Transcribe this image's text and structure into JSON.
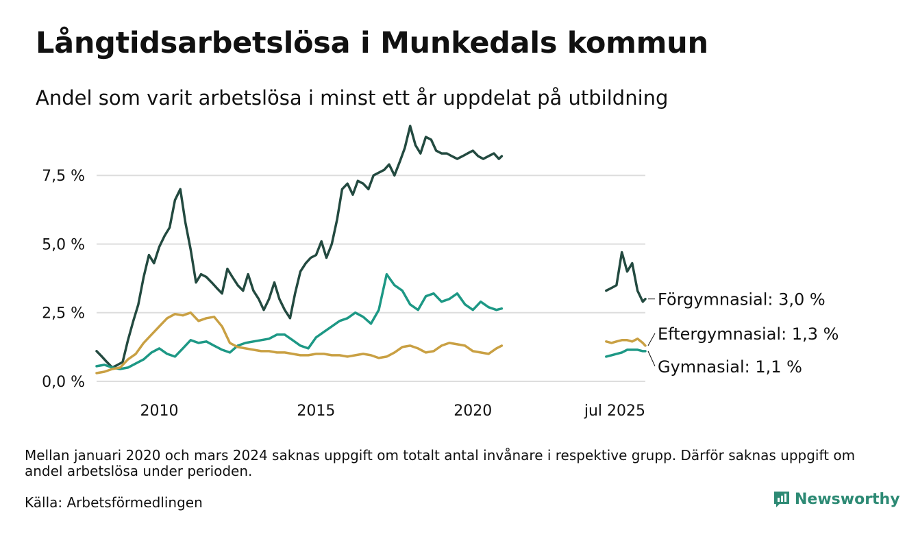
{
  "header": {
    "title": "Långtidsarbetslösa i Munkedals kommun",
    "subtitle": "Andel som varit arbetslösa i minst ett år uppdelat på utbildning"
  },
  "footer": {
    "note": "Mellan januari 2020 och mars 2024 saknas uppgift om totalt antal invånare i respektive grupp. Därför saknas uppgift om andel arbetslösa under perioden.",
    "source": "Källa: Arbetsförmedlingen",
    "brand": "Newsworthy"
  },
  "colors": {
    "accent": "#2d8a74",
    "grid": "#dddddd"
  },
  "chart_data": {
    "type": "line",
    "title": "Långtidsarbetslösa i Munkedals kommun",
    "subtitle": "Andel som varit arbetslösa i minst ett år uppdelat på utbildning",
    "ylim": [
      0,
      9.4
    ],
    "yticks": [
      0,
      2.5,
      5.0,
      7.5
    ],
    "ytick_labels": [
      "0,0 %",
      "2,5 %",
      "5,0 %",
      "7,5 %"
    ],
    "xticks": [
      2010,
      2015,
      2020,
      2025.5
    ],
    "xtick_labels": [
      "2010",
      "2015",
      "2020",
      "jul 2025"
    ],
    "grid": true,
    "series": [
      {
        "name": "Förgymnasial",
        "end_label": "Förgymnasial: 3,0 %",
        "color": "#234a40",
        "segments": [
          {
            "x": [
              2008.0,
              2008.17,
              2008.33,
              2008.5,
              2008.67,
              2008.83,
              2009.0,
              2009.17,
              2009.33,
              2009.5,
              2009.67,
              2009.83,
              2010.0,
              2010.17,
              2010.33,
              2010.5,
              2010.67,
              2010.83,
              2011.0,
              2011.17,
              2011.33,
              2011.5,
              2011.67,
              2011.83,
              2012.0,
              2012.17,
              2012.33,
              2012.5,
              2012.67,
              2012.83,
              2013.0,
              2013.17,
              2013.33,
              2013.5,
              2013.67,
              2013.83,
              2014.0,
              2014.17,
              2014.33,
              2014.5,
              2014.67,
              2014.83,
              2015.0,
              2015.17,
              2015.33,
              2015.5,
              2015.67,
              2015.83,
              2016.0,
              2016.17,
              2016.33,
              2016.5,
              2016.67,
              2016.83,
              2017.0,
              2017.17,
              2017.33,
              2017.5,
              2017.67,
              2017.83,
              2018.0,
              2018.17,
              2018.33,
              2018.5,
              2018.67,
              2018.83,
              2019.0,
              2019.17,
              2019.33,
              2019.5,
              2019.67,
              2019.83,
              2020.0,
              2020.17,
              2020.33,
              2020.5,
              2020.67,
              2020.83,
              2020.92
            ],
            "y": [
              1.1,
              0.9,
              0.7,
              0.5,
              0.6,
              0.7,
              1.5,
              2.2,
              2.8,
              3.8,
              4.6,
              4.3,
              4.9,
              5.3,
              5.6,
              6.6,
              7.0,
              5.8,
              4.8,
              3.6,
              3.9,
              3.8,
              3.6,
              3.4,
              3.2,
              4.1,
              3.8,
              3.5,
              3.3,
              3.9,
              3.3,
              3.0,
              2.6,
              3.0,
              3.6,
              3.0,
              2.6,
              2.3,
              3.2,
              4.0,
              4.3,
              4.5,
              4.6,
              5.1,
              4.5,
              5.0,
              5.9,
              7.0,
              7.2,
              6.8,
              7.3,
              7.2,
              7.0,
              7.5,
              7.6,
              7.7,
              7.9,
              7.5,
              8.0,
              8.5,
              9.3,
              8.6,
              8.3,
              8.9,
              8.8,
              8.4,
              8.3,
              8.3,
              8.2,
              8.1,
              8.2,
              8.3,
              8.4,
              8.2,
              8.1,
              8.2,
              8.3,
              8.1,
              8.2
            ]
          },
          {
            "x": [
              2024.25,
              2024.42,
              2024.58,
              2024.75,
              2024.92,
              2025.08,
              2025.25,
              2025.42,
              2025.5
            ],
            "y": [
              3.3,
              3.4,
              3.5,
              4.7,
              4.0,
              4.3,
              3.3,
              2.9,
              3.0
            ]
          }
        ]
      },
      {
        "name": "Gymnasial",
        "end_label": "Gymnasial: 1,1 %",
        "color": "#1d9885",
        "segments": [
          {
            "x": [
              2008.0,
              2008.25,
              2008.5,
              2008.75,
              2009.0,
              2009.25,
              2009.5,
              2009.75,
              2010.0,
              2010.25,
              2010.5,
              2010.75,
              2011.0,
              2011.25,
              2011.5,
              2011.75,
              2012.0,
              2012.25,
              2012.5,
              2012.75,
              2013.0,
              2013.25,
              2013.5,
              2013.75,
              2014.0,
              2014.25,
              2014.5,
              2014.75,
              2015.0,
              2015.25,
              2015.5,
              2015.75,
              2016.0,
              2016.25,
              2016.5,
              2016.75,
              2017.0,
              2017.25,
              2017.5,
              2017.75,
              2018.0,
              2018.25,
              2018.5,
              2018.75,
              2019.0,
              2019.25,
              2019.5,
              2019.75,
              2020.0,
              2020.25,
              2020.5,
              2020.75,
              2020.92
            ],
            "y": [
              0.55,
              0.6,
              0.5,
              0.45,
              0.5,
              0.65,
              0.8,
              1.05,
              1.2,
              1.0,
              0.9,
              1.2,
              1.5,
              1.4,
              1.45,
              1.3,
              1.15,
              1.05,
              1.3,
              1.4,
              1.45,
              1.5,
              1.55,
              1.7,
              1.7,
              1.5,
              1.3,
              1.2,
              1.6,
              1.8,
              2.0,
              2.2,
              2.3,
              2.5,
              2.35,
              2.1,
              2.6,
              3.9,
              3.5,
              3.3,
              2.8,
              2.6,
              3.1,
              3.2,
              2.9,
              3.0,
              3.2,
              2.8,
              2.6,
              2.9,
              2.7,
              2.6,
              2.65
            ]
          },
          {
            "x": [
              2024.25,
              2024.42,
              2024.58,
              2024.75,
              2024.92,
              2025.08,
              2025.25,
              2025.42,
              2025.5
            ],
            "y": [
              0.9,
              0.95,
              1.0,
              1.05,
              1.15,
              1.15,
              1.15,
              1.1,
              1.1
            ]
          }
        ]
      },
      {
        "name": "Eftergymnasial",
        "end_label": "Eftergymnasial: 1,3 %",
        "color": "#c9a043",
        "segments": [
          {
            "x": [
              2008.0,
              2008.25,
              2008.5,
              2008.75,
              2009.0,
              2009.25,
              2009.5,
              2009.75,
              2010.0,
              2010.25,
              2010.5,
              2010.75,
              2011.0,
              2011.25,
              2011.5,
              2011.75,
              2012.0,
              2012.25,
              2012.5,
              2012.75,
              2013.0,
              2013.25,
              2013.5,
              2013.75,
              2014.0,
              2014.25,
              2014.5,
              2014.75,
              2015.0,
              2015.25,
              2015.5,
              2015.75,
              2016.0,
              2016.25,
              2016.5,
              2016.75,
              2017.0,
              2017.25,
              2017.5,
              2017.75,
              2018.0,
              2018.25,
              2018.5,
              2018.75,
              2019.0,
              2019.25,
              2019.5,
              2019.75,
              2020.0,
              2020.25,
              2020.5,
              2020.75,
              2020.92
            ],
            "y": [
              0.3,
              0.35,
              0.45,
              0.5,
              0.8,
              1.0,
              1.4,
              1.7,
              2.0,
              2.3,
              2.45,
              2.4,
              2.5,
              2.2,
              2.3,
              2.35,
              2.0,
              1.4,
              1.25,
              1.2,
              1.15,
              1.1,
              1.1,
              1.05,
              1.05,
              1.0,
              0.95,
              0.95,
              1.0,
              1.0,
              0.95,
              0.95,
              0.9,
              0.95,
              1.0,
              0.95,
              0.85,
              0.9,
              1.05,
              1.25,
              1.3,
              1.2,
              1.05,
              1.1,
              1.3,
              1.4,
              1.35,
              1.3,
              1.1,
              1.05,
              1.0,
              1.2,
              1.3
            ]
          },
          {
            "x": [
              2024.25,
              2024.42,
              2024.58,
              2024.75,
              2024.92,
              2025.08,
              2025.25,
              2025.42,
              2025.5
            ],
            "y": [
              1.45,
              1.4,
              1.45,
              1.5,
              1.5,
              1.45,
              1.55,
              1.4,
              1.3
            ]
          }
        ]
      }
    ]
  }
}
